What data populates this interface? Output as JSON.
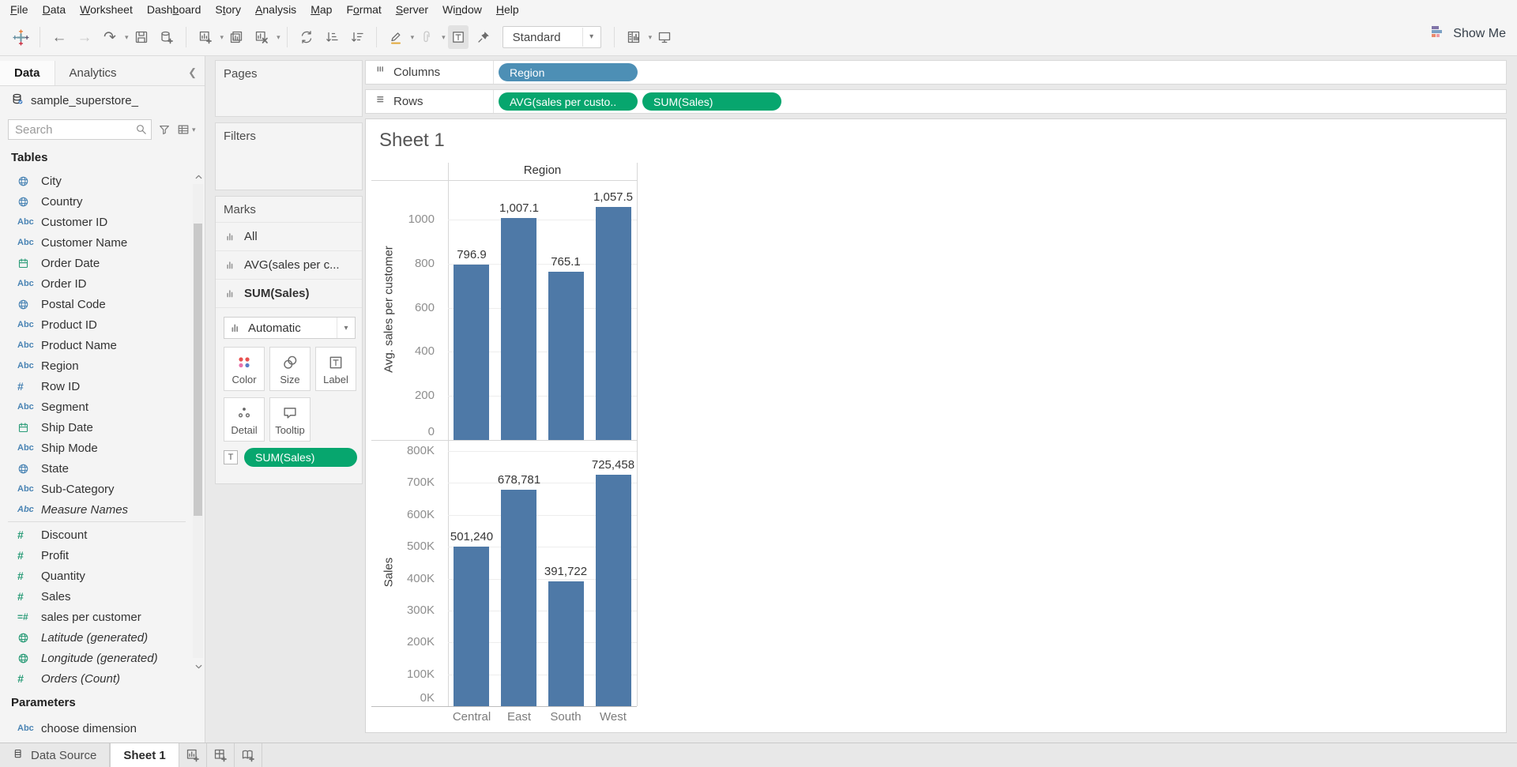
{
  "menu": {
    "items": [
      {
        "label": "File",
        "u": 0
      },
      {
        "label": "Data",
        "u": 0
      },
      {
        "label": "Worksheet",
        "u": 0
      },
      {
        "label": "Dashboard",
        "u": 4
      },
      {
        "label": "Story",
        "u": 1
      },
      {
        "label": "Analysis",
        "u": 0
      },
      {
        "label": "Map",
        "u": 0
      },
      {
        "label": "Format",
        "u": 1
      },
      {
        "label": "Server",
        "u": 0
      },
      {
        "label": "Window",
        "u": 2
      },
      {
        "label": "Help",
        "u": 0
      }
    ]
  },
  "toolbar": {
    "fit_label": "Standard",
    "show_me_label": "Show Me",
    "icons": [
      {
        "name": "tableau-logo-icon",
        "type": "logo"
      },
      {
        "sep": true
      },
      {
        "name": "undo-icon",
        "glyph": "back"
      },
      {
        "name": "redo-icon",
        "glyph": "forward",
        "disabled": true
      },
      {
        "name": "replay-icon",
        "glyph": "replay",
        "caret": true
      },
      {
        "name": "save-icon",
        "svg": "save"
      },
      {
        "name": "new-data-source-icon",
        "svg": "dbplus"
      },
      {
        "sep": true
      },
      {
        "name": "new-worksheet-icon",
        "svg": "sheetplus",
        "caret": true
      },
      {
        "name": "duplicate-icon",
        "svg": "duplicate"
      },
      {
        "name": "clear-sheet-icon",
        "svg": "sheetclear",
        "caret": true
      },
      {
        "sep": true
      },
      {
        "name": "swap-rows-columns-icon",
        "svg": "swap"
      },
      {
        "name": "sort-ascending-icon",
        "svg": "sortasc"
      },
      {
        "name": "sort-descending-icon",
        "svg": "sortdesc"
      },
      {
        "sep": true
      },
      {
        "name": "highlight-icon",
        "svg": "pencil",
        "caret": true
      },
      {
        "name": "group-members-icon",
        "svg": "clip",
        "caret": true,
        "disabled": true
      },
      {
        "name": "show-mark-labels-button",
        "svg": "tbox",
        "active": true
      },
      {
        "name": "fix-axes-icon",
        "svg": "pin"
      },
      {
        "fit": true
      },
      {
        "sep": true
      },
      {
        "name": "show-hide-cards-icon",
        "svg": "cards",
        "caret": true
      },
      {
        "name": "presentation-mode-icon",
        "svg": "present"
      }
    ]
  },
  "sidebar": {
    "tabs": [
      {
        "label": "Data",
        "active": true
      },
      {
        "label": "Analytics",
        "active": false
      }
    ],
    "datasource": "sample_superstore_",
    "search_placeholder": "Search",
    "tables_header": "Tables",
    "fields": [
      {
        "label": "City",
        "icon": "globe",
        "color": "blue"
      },
      {
        "label": "Country",
        "icon": "globe",
        "color": "blue"
      },
      {
        "label": "Customer ID",
        "icon": "abc",
        "color": "blue"
      },
      {
        "label": "Customer Name",
        "icon": "abc",
        "color": "blue"
      },
      {
        "label": "Order Date",
        "icon": "calendar",
        "color": "green"
      },
      {
        "label": "Order ID",
        "icon": "abc",
        "color": "blue"
      },
      {
        "label": "Postal Code",
        "icon": "globe",
        "color": "blue"
      },
      {
        "label": "Product ID",
        "icon": "abc",
        "color": "blue"
      },
      {
        "label": "Product Name",
        "icon": "abc",
        "color": "blue"
      },
      {
        "label": "Region",
        "icon": "abc",
        "color": "blue"
      },
      {
        "label": "Row ID",
        "icon": "hash",
        "color": "blue"
      },
      {
        "label": "Segment",
        "icon": "abc",
        "color": "blue"
      },
      {
        "label": "Ship Date",
        "icon": "calendar",
        "color": "green"
      },
      {
        "label": "Ship Mode",
        "icon": "abc",
        "color": "blue"
      },
      {
        "label": "State",
        "icon": "globe",
        "color": "blue"
      },
      {
        "label": "Sub-Category",
        "icon": "abc",
        "color": "blue"
      },
      {
        "label": "Measure Names",
        "icon": "abc",
        "color": "blue",
        "italic": true,
        "divider_after": true
      },
      {
        "label": "Discount",
        "icon": "hash",
        "color": "green"
      },
      {
        "label": "Profit",
        "icon": "hash",
        "color": "green"
      },
      {
        "label": "Quantity",
        "icon": "hash",
        "color": "green"
      },
      {
        "label": "Sales",
        "icon": "hash",
        "color": "green"
      },
      {
        "label": "sales per customer",
        "icon": "eqhash",
        "color": "green"
      },
      {
        "label": "Latitude (generated)",
        "icon": "globe",
        "color": "green",
        "italic": true
      },
      {
        "label": "Longitude (generated)",
        "icon": "globe",
        "color": "green",
        "italic": true
      },
      {
        "label": "Orders (Count)",
        "icon": "hash",
        "color": "green",
        "italic": true
      }
    ],
    "parameters_header": "Parameters",
    "parameters": [
      {
        "label": "choose dimension",
        "icon": "abc",
        "color": "blue"
      }
    ]
  },
  "cards": {
    "pages_label": "Pages",
    "filters_label": "Filters",
    "marks_label": "Marks",
    "marks_items": [
      {
        "label": "All",
        "selected": false
      },
      {
        "label": "AVG(sales per c...",
        "selected": false
      },
      {
        "label": "SUM(Sales)",
        "selected": true
      }
    ],
    "mark_type": "Automatic",
    "buttons": [
      {
        "label": "Color",
        "icon": "color-icon"
      },
      {
        "label": "Size",
        "icon": "size-icon"
      },
      {
        "label": "Label",
        "icon": "label-icon"
      },
      {
        "label": "Detail",
        "icon": "detail-icon"
      },
      {
        "label": "Tooltip",
        "icon": "tooltip-icon"
      }
    ],
    "label_pill": "SUM(Sales)"
  },
  "shelves": {
    "columns_label": "Columns",
    "rows_label": "Rows",
    "columns_pills": [
      {
        "label": "Region",
        "type": "dimension"
      }
    ],
    "rows_pills": [
      {
        "label": "AVG(sales per custo..",
        "type": "measure"
      },
      {
        "label": "SUM(Sales)",
        "type": "measure"
      }
    ]
  },
  "sheet": {
    "title": "Sheet 1"
  },
  "chart_data": {
    "type": "bar",
    "title": "Sheet 1",
    "column_header": "Region",
    "categories": [
      "Central",
      "East",
      "South",
      "West"
    ],
    "series": [
      {
        "name": "Avg. sales per customer",
        "values": [
          796.9,
          1007.1,
          765.1,
          1057.5
        ],
        "labels": [
          "796.9",
          "1,007.1",
          "765.1",
          "1,057.5"
        ],
        "ticks": [
          0,
          200,
          400,
          600,
          800,
          1000
        ],
        "tick_labels": [
          "0",
          "200",
          "400",
          "600",
          "800",
          "1000"
        ],
        "ylim": [
          0,
          1180
        ]
      },
      {
        "name": "Sales",
        "values": [
          501240,
          678781,
          391722,
          725458
        ],
        "labels": [
          "501,240",
          "678,781",
          "391,722",
          "725,458"
        ],
        "ticks": [
          0,
          100000,
          200000,
          300000,
          400000,
          500000,
          600000,
          700000,
          800000
        ],
        "tick_labels": [
          "0K",
          "100K",
          "200K",
          "300K",
          "400K",
          "500K",
          "600K",
          "700K",
          "800K"
        ],
        "ylim": [
          0,
          832000
        ]
      }
    ],
    "bar_color": "#4e79a7",
    "grid": true,
    "legend": "none"
  },
  "statusbar": {
    "tabs": [
      {
        "label": "Data Source",
        "icon": "database-icon",
        "active": false
      },
      {
        "label": "Sheet 1",
        "icon": "",
        "active": true
      }
    ],
    "new_buttons": [
      {
        "name": "new-worksheet-button",
        "icon": "sheetplus"
      },
      {
        "name": "new-dashboard-button",
        "icon": "dashplus"
      },
      {
        "name": "new-story-button",
        "icon": "bookplus"
      }
    ]
  },
  "colors": {
    "pill_dimension": "#4d8fb5",
    "pill_measure": "#07a66e",
    "bar": "#4e79a7",
    "icon_blue": "#4a84b4",
    "icon_green": "#2b9c78"
  }
}
